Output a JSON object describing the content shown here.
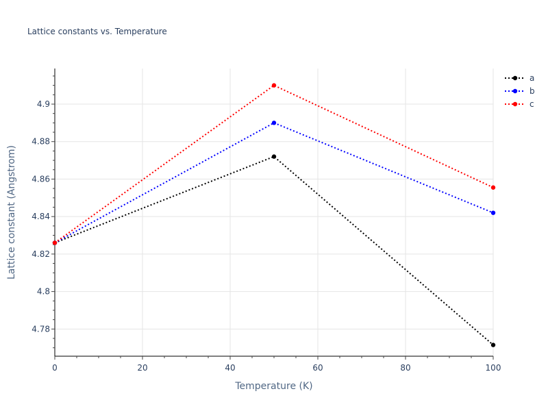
{
  "chart_data": {
    "type": "line",
    "title": "Lattice constants vs. Temperature",
    "xlabel": "Temperature (K)",
    "ylabel": "Lattice constant (Angstrom)",
    "x": [
      0,
      50,
      100
    ],
    "xlim": [
      0,
      100
    ],
    "ylim": [
      4.7655,
      4.919
    ],
    "xticks": [
      0,
      20,
      40,
      60,
      80,
      100
    ],
    "xtick_labels": [
      "0",
      "20",
      "40",
      "60",
      "80",
      "100"
    ],
    "yticks": [
      4.78,
      4.8,
      4.82,
      4.84,
      4.86,
      4.88,
      4.9
    ],
    "ytick_labels": [
      "4.78",
      "4.8",
      "4.82",
      "4.84",
      "4.86",
      "4.88",
      "4.9"
    ],
    "grid": true,
    "line_style": "dotted",
    "legend_position": "top-right",
    "series": [
      {
        "name": "a",
        "color": "#000000",
        "values": [
          4.826,
          4.872,
          4.7715
        ]
      },
      {
        "name": "b",
        "color": "#0000ff",
        "values": [
          4.826,
          4.89,
          4.842
        ]
      },
      {
        "name": "c",
        "color": "#ff0000",
        "values": [
          4.826,
          4.91,
          4.8555
        ]
      }
    ]
  }
}
